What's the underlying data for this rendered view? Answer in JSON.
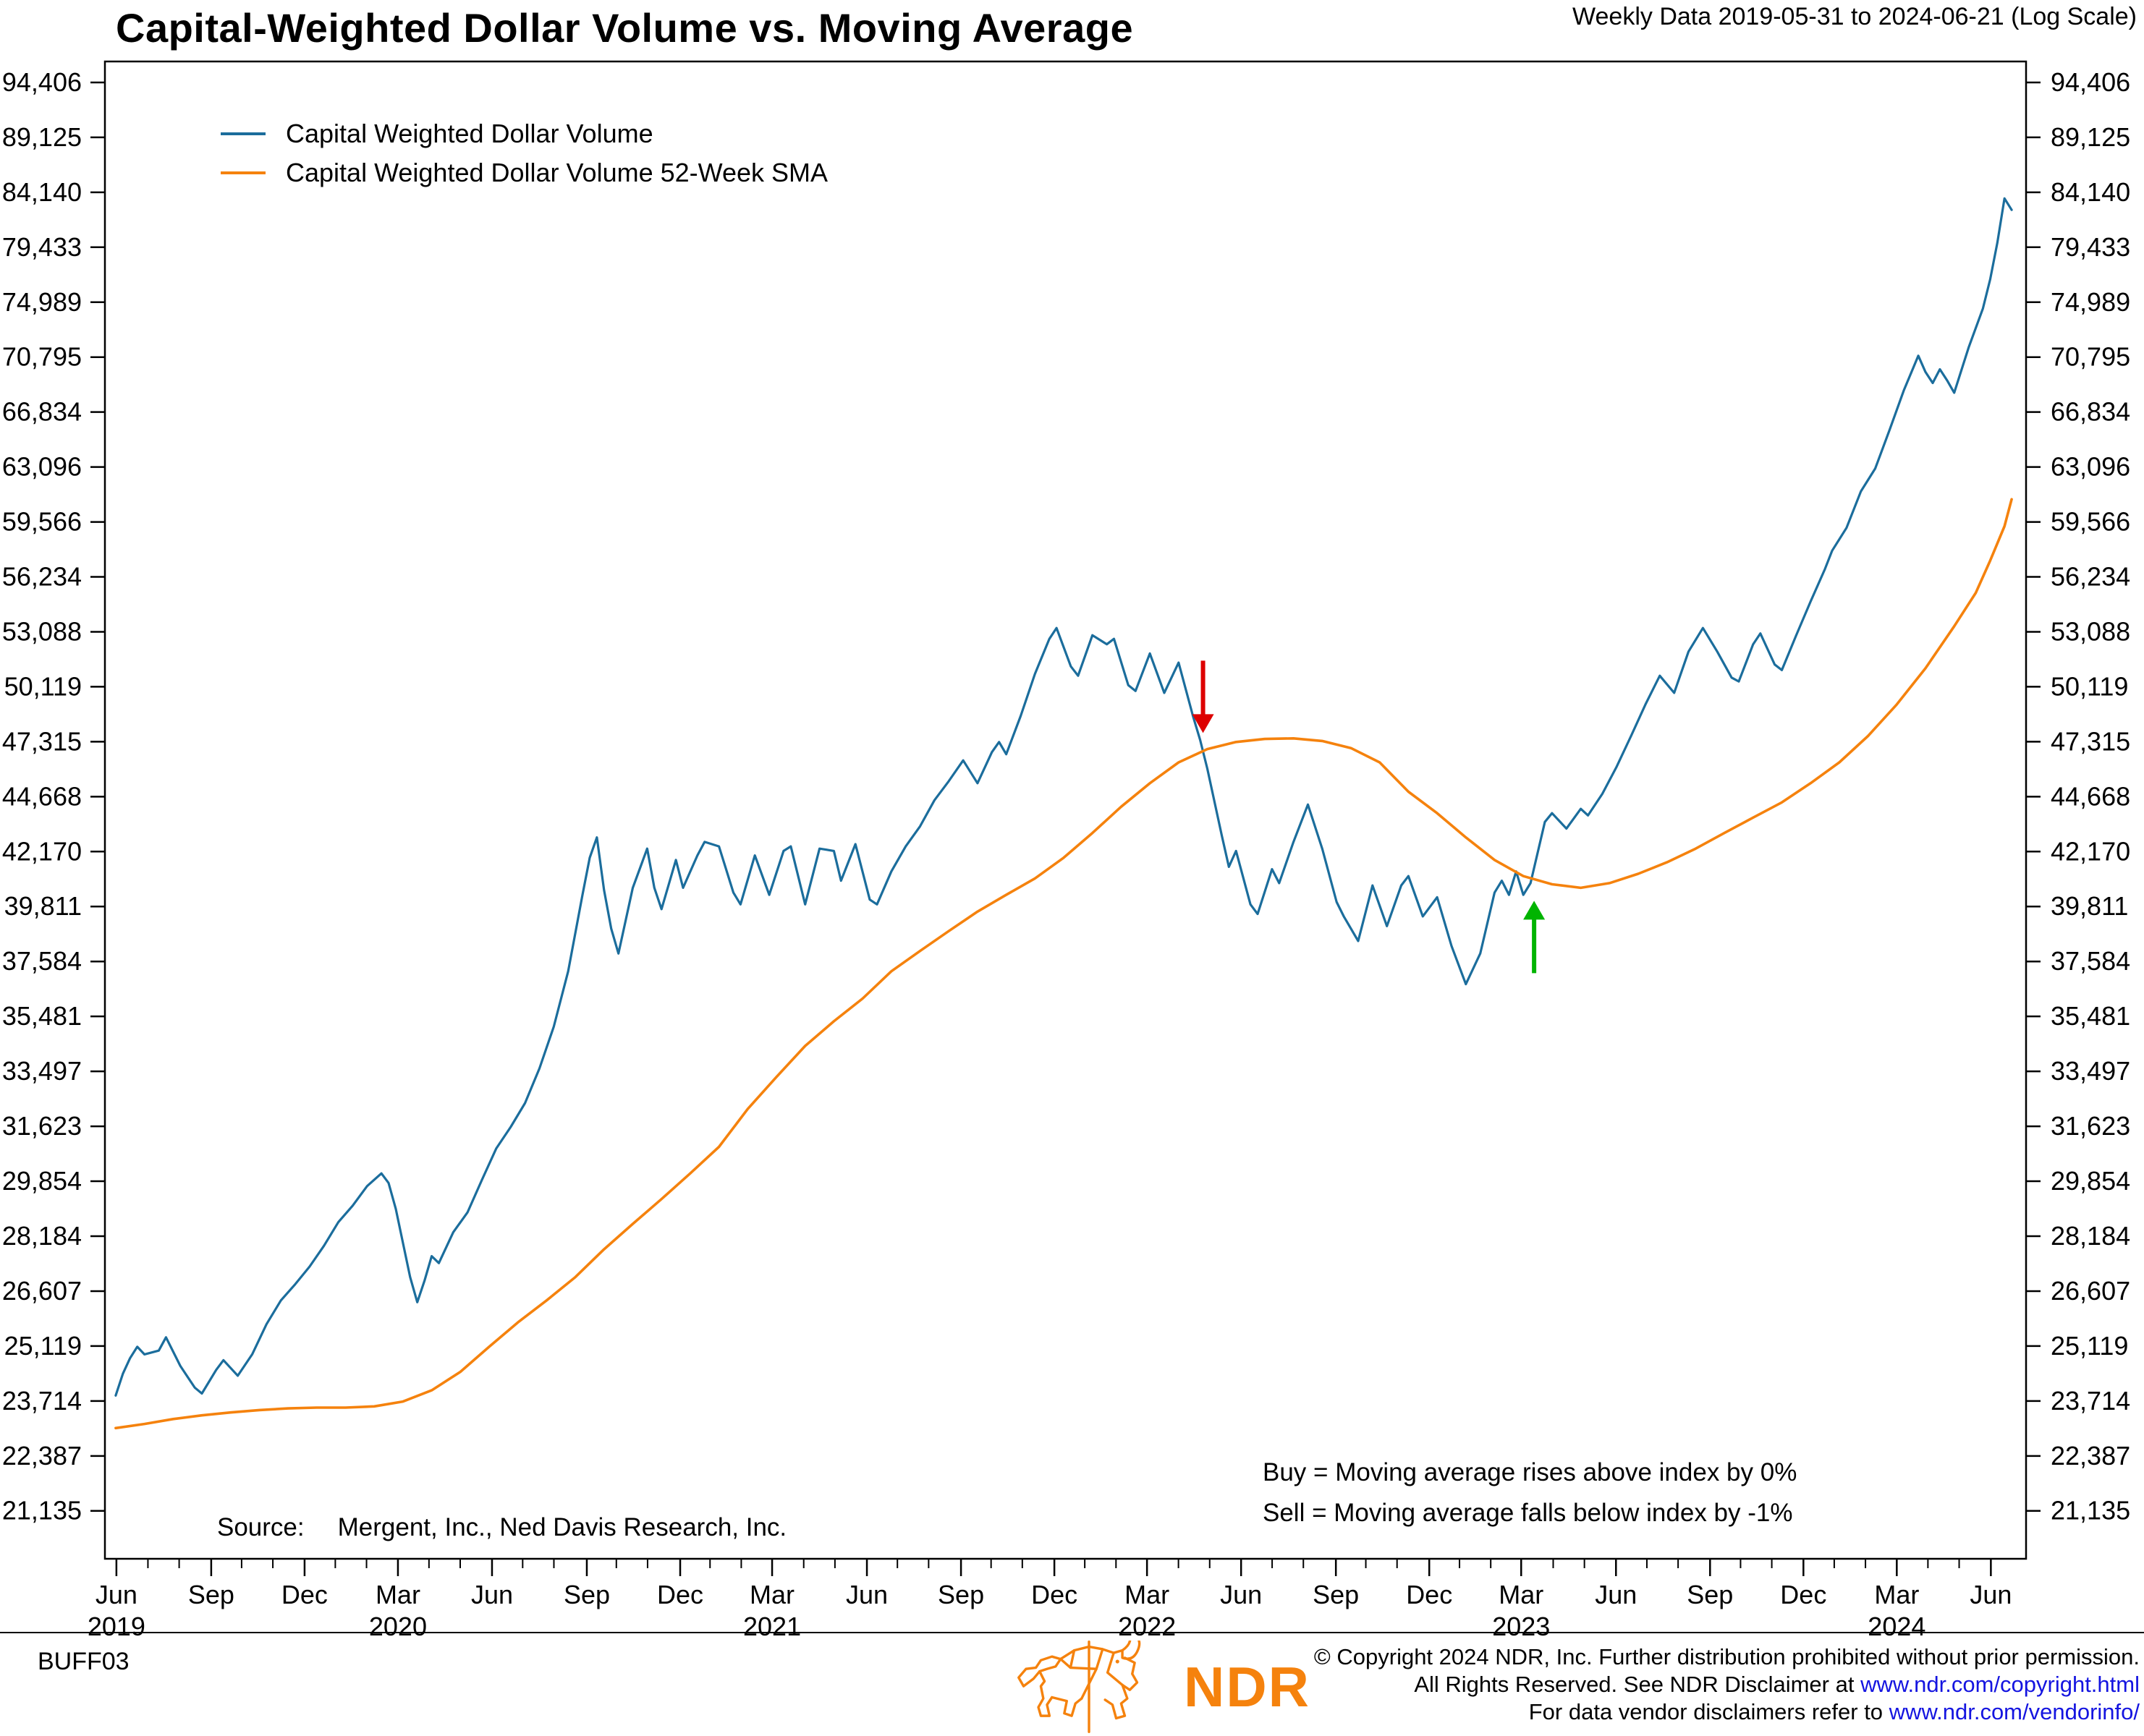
{
  "header": {
    "title": "Capital-Weighted Dollar Volume vs. Moving Average",
    "range_note": "Weekly Data 2019-05-31 to 2024-06-21 (Log Scale)"
  },
  "colors": {
    "volume_line": "#1b6d9c",
    "sma_line": "#f5820d",
    "sell_arrow": "#dd0000",
    "buy_arrow": "#00b400",
    "link": "#1414e0",
    "brand_orange": "#F5820D"
  },
  "legend": [
    {
      "label": "Capital Weighted Dollar Volume",
      "color": "#1b6d9c"
    },
    {
      "label": "Capital Weighted Dollar Volume 52-Week SMA",
      "color": "#f5820d"
    }
  ],
  "annotations": {
    "buy_rule": "Buy = Moving average rises above index by 0%",
    "sell_rule": "Sell = Moving average falls below index by -1%",
    "source_label": "Source:",
    "source_text": "Mergent, Inc., Ned Davis Research, Inc."
  },
  "footer": {
    "chart_id": "BUFF03",
    "logo_text": "NDR",
    "copyright_line1": "© Copyright 2024 NDR, Inc. Further distribution prohibited without prior permission.",
    "copyright_line2_prefix": "All Rights Reserved. See NDR Disclaimer at ",
    "copyright_line2_link": "www.ndr.com/copyright.html",
    "copyright_line3_prefix": "For data vendor disclaimers refer to ",
    "copyright_line3_link": "www.ndr.com/vendorinfo/"
  },
  "chart_data": {
    "type": "line",
    "log_scale": true,
    "x_unit": "weeks since 2019-05-31",
    "x_range_weeks": [
      -1.5,
      266
    ],
    "y_range": [
      20100,
      96500
    ],
    "grid": false,
    "legend_position": "top-left",
    "y_ticks": [
      94406,
      89125,
      84140,
      79433,
      74989,
      70795,
      66834,
      63096,
      59566,
      56234,
      53088,
      50119,
      47315,
      44668,
      42170,
      39811,
      37584,
      35481,
      33497,
      31623,
      29854,
      28184,
      26607,
      25119,
      23714,
      22387,
      21135
    ],
    "x_ticks": [
      {
        "label": "Jun",
        "week": 0.1,
        "year": "2019"
      },
      {
        "label": "Sep",
        "week": 13.3
      },
      {
        "label": "Dec",
        "week": 26.3
      },
      {
        "label": "Mar",
        "week": 39.3,
        "year": "2020"
      },
      {
        "label": "Jun",
        "week": 52.4
      },
      {
        "label": "Sep",
        "week": 65.6
      },
      {
        "label": "Dec",
        "week": 78.6
      },
      {
        "label": "Mar",
        "week": 91.4,
        "year": "2021"
      },
      {
        "label": "Jun",
        "week": 104.6
      },
      {
        "label": "Sep",
        "week": 117.7
      },
      {
        "label": "Dec",
        "week": 130.7
      },
      {
        "label": "Mar",
        "week": 143.6,
        "year": "2022"
      },
      {
        "label": "Jun",
        "week": 156.7
      },
      {
        "label": "Sep",
        "week": 169.9
      },
      {
        "label": "Dec",
        "week": 182.9
      },
      {
        "label": "Mar",
        "week": 195.7,
        "year": "2023"
      },
      {
        "label": "Jun",
        "week": 208.9
      },
      {
        "label": "Sep",
        "week": 222.0
      },
      {
        "label": "Dec",
        "week": 235.0
      },
      {
        "label": "Mar",
        "week": 248.0,
        "year": "2024"
      },
      {
        "label": "Jun",
        "week": 261.1
      }
    ],
    "signals": {
      "sell_arrow": {
        "week": 151.4,
        "value": 47100,
        "direction": "down",
        "color": "#dd0000"
      },
      "buy_arrow": {
        "week": 197.5,
        "value": 40600,
        "direction": "up",
        "color": "#00b400"
      }
    },
    "series": [
      {
        "name": "Capital Weighted Dollar Volume",
        "color": "#1b6d9c",
        "width": 3.2,
        "points": [
          [
            0,
            23850
          ],
          [
            1,
            24400
          ],
          [
            2,
            24800
          ],
          [
            3,
            25100
          ],
          [
            4,
            24900
          ],
          [
            6,
            25000
          ],
          [
            7,
            25350
          ],
          [
            9,
            24600
          ],
          [
            11,
            24050
          ],
          [
            12,
            23900
          ],
          [
            14,
            24500
          ],
          [
            15,
            24750
          ],
          [
            17,
            24350
          ],
          [
            19,
            24900
          ],
          [
            21,
            25700
          ],
          [
            23,
            26350
          ],
          [
            25,
            26800
          ],
          [
            27,
            27300
          ],
          [
            29,
            27900
          ],
          [
            31,
            28600
          ],
          [
            33,
            29100
          ],
          [
            35,
            29700
          ],
          [
            37,
            30100
          ],
          [
            38,
            29800
          ],
          [
            39,
            29000
          ],
          [
            41,
            27000
          ],
          [
            42,
            26300
          ],
          [
            43,
            26900
          ],
          [
            44,
            27600
          ],
          [
            45,
            27400
          ],
          [
            47,
            28300
          ],
          [
            49,
            28900
          ],
          [
            51,
            29900
          ],
          [
            53,
            30900
          ],
          [
            55,
            31600
          ],
          [
            57,
            32400
          ],
          [
            59,
            33600
          ],
          [
            61,
            35100
          ],
          [
            63,
            37200
          ],
          [
            65,
            40300
          ],
          [
            66,
            41900
          ],
          [
            67,
            42800
          ],
          [
            68,
            40500
          ],
          [
            69,
            38900
          ],
          [
            70,
            37900
          ],
          [
            72,
            40600
          ],
          [
            74,
            42300
          ],
          [
            75,
            40600
          ],
          [
            76,
            39700
          ],
          [
            78,
            41800
          ],
          [
            79,
            40600
          ],
          [
            81,
            42000
          ],
          [
            82,
            42600
          ],
          [
            84,
            42400
          ],
          [
            86,
            40400
          ],
          [
            87,
            39900
          ],
          [
            89,
            42000
          ],
          [
            91,
            40300
          ],
          [
            93,
            42200
          ],
          [
            94,
            42400
          ],
          [
            96,
            39900
          ],
          [
            98,
            42300
          ],
          [
            100,
            42200
          ],
          [
            101,
            40900
          ],
          [
            103,
            42500
          ],
          [
            105,
            40100
          ],
          [
            106,
            39900
          ],
          [
            108,
            41300
          ],
          [
            110,
            42400
          ],
          [
            112,
            43300
          ],
          [
            114,
            44500
          ],
          [
            116,
            45400
          ],
          [
            118,
            46400
          ],
          [
            120,
            45300
          ],
          [
            122,
            46800
          ],
          [
            123,
            47300
          ],
          [
            124,
            46700
          ],
          [
            126,
            48600
          ],
          [
            128,
            50800
          ],
          [
            130,
            52700
          ],
          [
            131,
            53300
          ],
          [
            133,
            51200
          ],
          [
            134,
            50700
          ],
          [
            136,
            52900
          ],
          [
            138,
            52400
          ],
          [
            139,
            52700
          ],
          [
            141,
            50200
          ],
          [
            142,
            49900
          ],
          [
            144,
            51900
          ],
          [
            146,
            49800
          ],
          [
            148,
            51400
          ],
          [
            150,
            48600
          ],
          [
            151,
            47400
          ],
          [
            152,
            46000
          ],
          [
            154,
            42900
          ],
          [
            155,
            41500
          ],
          [
            156,
            42200
          ],
          [
            158,
            39900
          ],
          [
            159,
            39500
          ],
          [
            161,
            41400
          ],
          [
            162,
            40800
          ],
          [
            164,
            42600
          ],
          [
            166,
            44300
          ],
          [
            168,
            42300
          ],
          [
            170,
            40000
          ],
          [
            171,
            39400
          ],
          [
            173,
            38400
          ],
          [
            175,
            40700
          ],
          [
            177,
            39000
          ],
          [
            179,
            40700
          ],
          [
            180,
            41100
          ],
          [
            182,
            39400
          ],
          [
            184,
            40200
          ],
          [
            186,
            38200
          ],
          [
            188,
            36700
          ],
          [
            190,
            37900
          ],
          [
            192,
            40400
          ],
          [
            193,
            40900
          ],
          [
            194,
            40300
          ],
          [
            195,
            41300
          ],
          [
            196,
            40300
          ],
          [
            197,
            40800
          ],
          [
            199,
            43500
          ],
          [
            200,
            43900
          ],
          [
            202,
            43200
          ],
          [
            204,
            44100
          ],
          [
            205,
            43800
          ],
          [
            207,
            44800
          ],
          [
            209,
            46100
          ],
          [
            211,
            47600
          ],
          [
            213,
            49200
          ],
          [
            215,
            50700
          ],
          [
            217,
            49800
          ],
          [
            219,
            52000
          ],
          [
            221,
            53300
          ],
          [
            223,
            52000
          ],
          [
            225,
            50600
          ],
          [
            226,
            50400
          ],
          [
            228,
            52400
          ],
          [
            229,
            53000
          ],
          [
            231,
            51300
          ],
          [
            232,
            51000
          ],
          [
            234,
            52900
          ],
          [
            236,
            54800
          ],
          [
            238,
            56700
          ],
          [
            239,
            57800
          ],
          [
            241,
            59200
          ],
          [
            243,
            61500
          ],
          [
            245,
            63000
          ],
          [
            247,
            65600
          ],
          [
            249,
            68400
          ],
          [
            251,
            70900
          ],
          [
            252,
            69700
          ],
          [
            253,
            68900
          ],
          [
            254,
            69900
          ],
          [
            255,
            69100
          ],
          [
            256,
            68200
          ],
          [
            258,
            71500
          ],
          [
            260,
            74500
          ],
          [
            261,
            76800
          ],
          [
            262,
            79800
          ],
          [
            263,
            83600
          ],
          [
            264,
            82600
          ]
        ]
      },
      {
        "name": "Capital Weighted Dollar Volume 52-Week SMA",
        "color": "#f5820d",
        "width": 3.6,
        "points": [
          [
            0,
            23050
          ],
          [
            4,
            23150
          ],
          [
            8,
            23270
          ],
          [
            12,
            23360
          ],
          [
            16,
            23430
          ],
          [
            20,
            23490
          ],
          [
            24,
            23530
          ],
          [
            28,
            23550
          ],
          [
            32,
            23550
          ],
          [
            36,
            23580
          ],
          [
            40,
            23700
          ],
          [
            44,
            23980
          ],
          [
            48,
            24450
          ],
          [
            52,
            25100
          ],
          [
            56,
            25750
          ],
          [
            60,
            26350
          ],
          [
            64,
            27000
          ],
          [
            68,
            27800
          ],
          [
            72,
            28550
          ],
          [
            76,
            29300
          ],
          [
            80,
            30100
          ],
          [
            84,
            30950
          ],
          [
            88,
            32200
          ],
          [
            92,
            33300
          ],
          [
            96,
            34400
          ],
          [
            100,
            35300
          ],
          [
            104,
            36150
          ],
          [
            108,
            37200
          ],
          [
            112,
            38000
          ],
          [
            116,
            38800
          ],
          [
            120,
            39600
          ],
          [
            124,
            40300
          ],
          [
            128,
            41000
          ],
          [
            132,
            41900
          ],
          [
            136,
            43000
          ],
          [
            140,
            44200
          ],
          [
            144,
            45300
          ],
          [
            148,
            46300
          ],
          [
            152,
            46950
          ],
          [
            156,
            47300
          ],
          [
            160,
            47450
          ],
          [
            164,
            47480
          ],
          [
            168,
            47350
          ],
          [
            172,
            47000
          ],
          [
            176,
            46300
          ],
          [
            180,
            44900
          ],
          [
            184,
            43900
          ],
          [
            188,
            42800
          ],
          [
            192,
            41800
          ],
          [
            196,
            41100
          ],
          [
            200,
            40750
          ],
          [
            204,
            40600
          ],
          [
            208,
            40800
          ],
          [
            212,
            41200
          ],
          [
            216,
            41700
          ],
          [
            220,
            42300
          ],
          [
            224,
            43000
          ],
          [
            228,
            43700
          ],
          [
            232,
            44400
          ],
          [
            236,
            45300
          ],
          [
            240,
            46300
          ],
          [
            244,
            47600
          ],
          [
            248,
            49200
          ],
          [
            252,
            51100
          ],
          [
            256,
            53400
          ],
          [
            259,
            55300
          ],
          [
            261,
            57200
          ],
          [
            263,
            59300
          ],
          [
            264,
            61000
          ]
        ]
      }
    ]
  }
}
